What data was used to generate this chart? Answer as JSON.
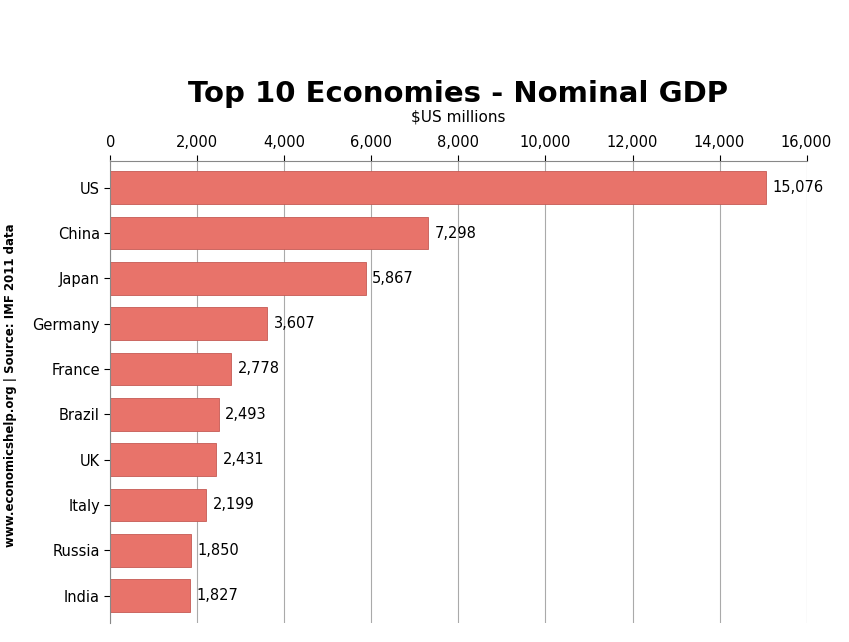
{
  "title": "Top 10 Economies - Nominal GDP",
  "xlabel": "$US millions",
  "countries": [
    "US",
    "China",
    "Japan",
    "Germany",
    "France",
    "Brazil",
    "UK",
    "Italy",
    "Russia",
    "India"
  ],
  "values": [
    15076,
    7298,
    5867,
    3607,
    2778,
    2493,
    2431,
    2199,
    1850,
    1827
  ],
  "bar_color": "#E8736A",
  "bar_edgecolor": "#C55A54",
  "xlim": [
    0,
    16000
  ],
  "xticks": [
    0,
    2000,
    4000,
    6000,
    8000,
    10000,
    12000,
    14000,
    16000
  ],
  "xtick_labels": [
    "0",
    "2,000",
    "4,000",
    "6,000",
    "8,000",
    "10,000",
    "12,000",
    "14,000",
    "16,000"
  ],
  "watermark": "www.economicshelp.org | Source: IMF 2011 data",
  "title_fontsize": 21,
  "xlabel_fontsize": 11,
  "tick_fontsize": 10.5,
  "label_fontsize": 10.5,
  "watermark_fontsize": 8.5,
  "background_color": "#FFFFFF",
  "grid_color": "#AAAAAA"
}
